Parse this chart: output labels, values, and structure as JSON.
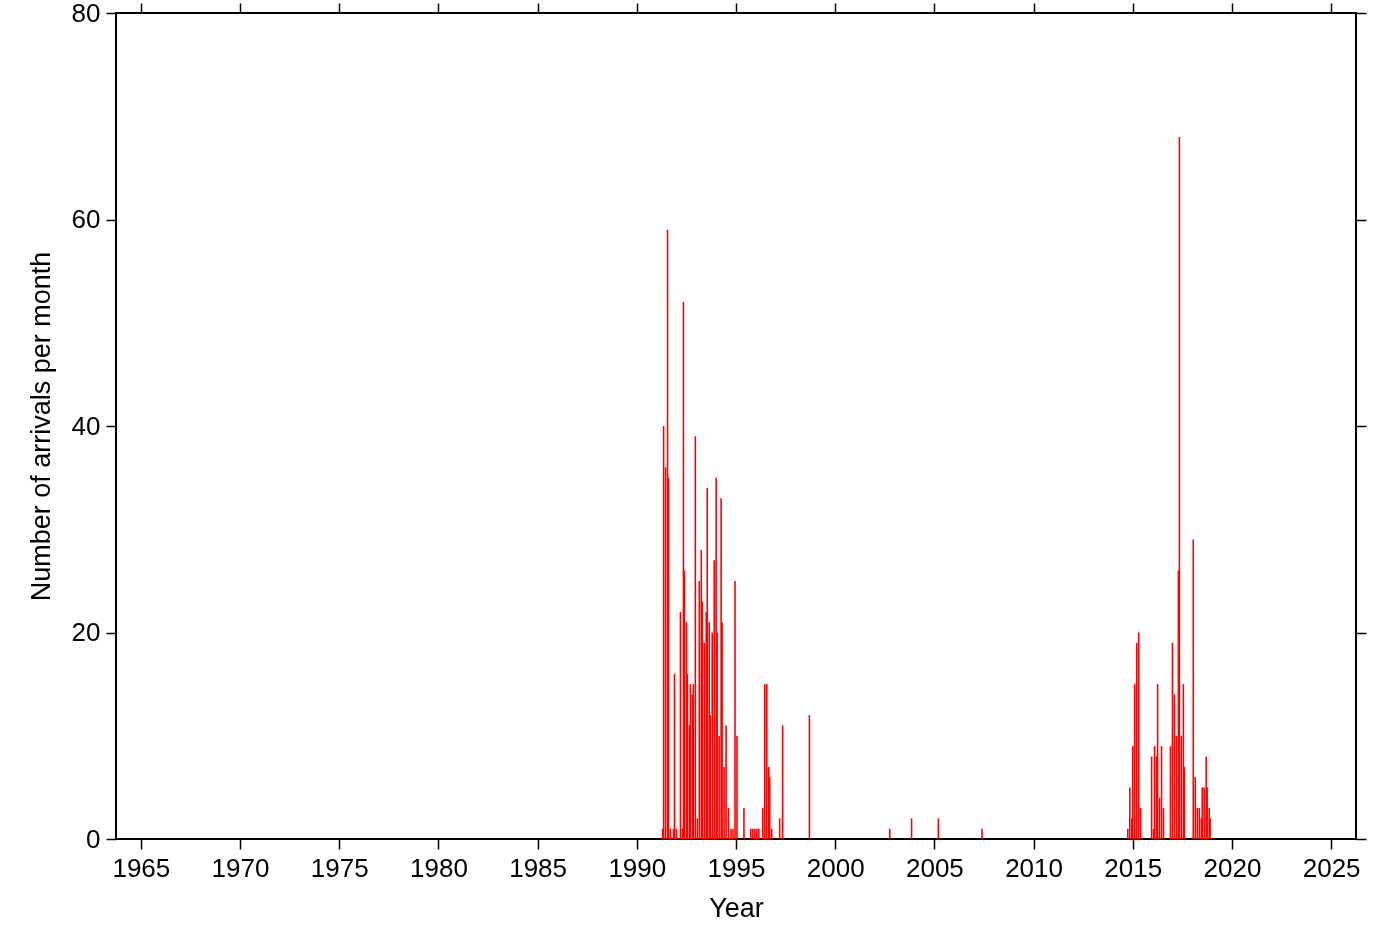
{
  "chart_data": {
    "type": "bar",
    "xlabel": "Year",
    "ylabel": "Number of arrivals per month",
    "x": [
      1991.3,
      1991.35,
      1991.45,
      1991.55,
      1991.6,
      1991.7,
      1991.85,
      1991.9,
      1992.0,
      1992.2,
      1992.3,
      1992.35,
      1992.4,
      1992.5,
      1992.55,
      1992.65,
      1992.7,
      1992.8,
      1992.85,
      1992.95,
      1993.05,
      1993.15,
      1993.25,
      1993.3,
      1993.4,
      1993.5,
      1993.55,
      1993.65,
      1993.7,
      1993.8,
      1993.9,
      1994.0,
      1994.05,
      1994.15,
      1994.25,
      1994.3,
      1994.4,
      1994.5,
      1994.62,
      1994.75,
      1994.85,
      1994.95,
      1995.05,
      1995.4,
      1995.75,
      1995.85,
      1995.95,
      1996.05,
      1996.15,
      1996.35,
      1996.45,
      1996.55,
      1996.65,
      1996.7,
      1996.8,
      1997.2,
      1997.35,
      1998.7,
      2002.75,
      2003.85,
      2005.2,
      2007.4,
      2014.75,
      2014.85,
      2014.95,
      2015.0,
      2015.1,
      2015.2,
      2015.3,
      2015.4,
      2015.95,
      2016.05,
      2016.1,
      2016.2,
      2016.25,
      2016.35,
      2016.45,
      2016.55,
      2016.9,
      2017.0,
      2017.1,
      2017.2,
      2017.3,
      2017.35,
      2017.45,
      2017.55,
      2017.6,
      2018.05,
      2018.15,
      2018.25,
      2018.35,
      2018.45,
      2018.5,
      2018.6,
      2018.7,
      2018.75,
      2018.85,
      2018.9
    ],
    "values": [
      1,
      40,
      36,
      59,
      35,
      1,
      1,
      16,
      1,
      22,
      1,
      52,
      26,
      21,
      16,
      11,
      15,
      14,
      15,
      39,
      2,
      25,
      28,
      23,
      19,
      22,
      34,
      21,
      12,
      20,
      27,
      35,
      20,
      10,
      33,
      21,
      7,
      11,
      3,
      1,
      1,
      25,
      10,
      3,
      1,
      1,
      1,
      1,
      1,
      3,
      15,
      15,
      7,
      6,
      1,
      2,
      11,
      12,
      1,
      2,
      2,
      1,
      1,
      5,
      2,
      9,
      15,
      19,
      20,
      3,
      8,
      1,
      9,
      8,
      15,
      4,
      9,
      3,
      9,
      19,
      14,
      10,
      26,
      68,
      10,
      15,
      7,
      29,
      6,
      3,
      3,
      2,
      5,
      5,
      8,
      5,
      3,
      2
    ],
    "color": "#ff0000",
    "xlim": [
      1964,
      2026
    ],
    "xticks": [
      1965,
      1970,
      1975,
      1980,
      1985,
      1990,
      1995,
      2000,
      2005,
      2010,
      2015,
      2020,
      2025
    ],
    "ylim": [
      0,
      80
    ],
    "yticks": [
      0,
      20,
      40,
      60,
      80
    ],
    "grid": false
  }
}
